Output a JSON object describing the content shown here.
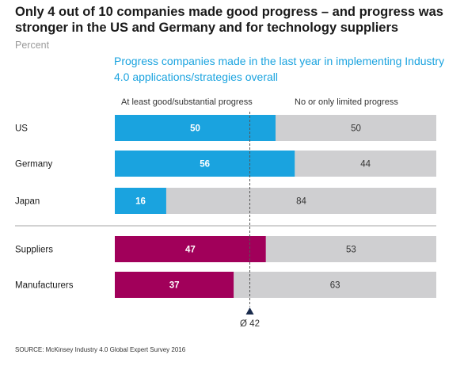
{
  "header": {
    "title": "Only 4 out of 10 companies made good progress – and progress was stronger in the US and Germany and for technology suppliers",
    "unit": "Percent",
    "subtitle": "Progress companies made in the last year in implementing Industry 4.0 applications/strategies overall"
  },
  "legend": {
    "good": "At least good/substantial progress",
    "limited": "No or only limited progress"
  },
  "colors": {
    "country": "#1aa3df",
    "type": "#a1005a",
    "limited": "#cfcfd1",
    "divider": "#a6a6a6"
  },
  "chart_data": {
    "type": "bar",
    "orientation": "horizontal",
    "stacked": true,
    "categories": [
      "US",
      "Germany",
      "Japan",
      "Suppliers",
      "Manufacturers"
    ],
    "groups": [
      {
        "categories": [
          "US",
          "Germany",
          "Japan"
        ],
        "color": "#1aa3df"
      },
      {
        "categories": [
          "Suppliers",
          "Manufacturers"
        ],
        "color": "#a1005a"
      }
    ],
    "series": [
      {
        "name": "At least good/substantial progress",
        "values": [
          50,
          56,
          16,
          47,
          37
        ]
      },
      {
        "name": "No or only limited progress",
        "values": [
          50,
          44,
          84,
          53,
          63
        ]
      }
    ],
    "average": {
      "value": 42,
      "label": "Ø 42"
    },
    "xlim": [
      0,
      100
    ]
  },
  "footer": {
    "source": "SOURCE: McKinsey Industry 4.0 Global Expert Survey 2016"
  }
}
